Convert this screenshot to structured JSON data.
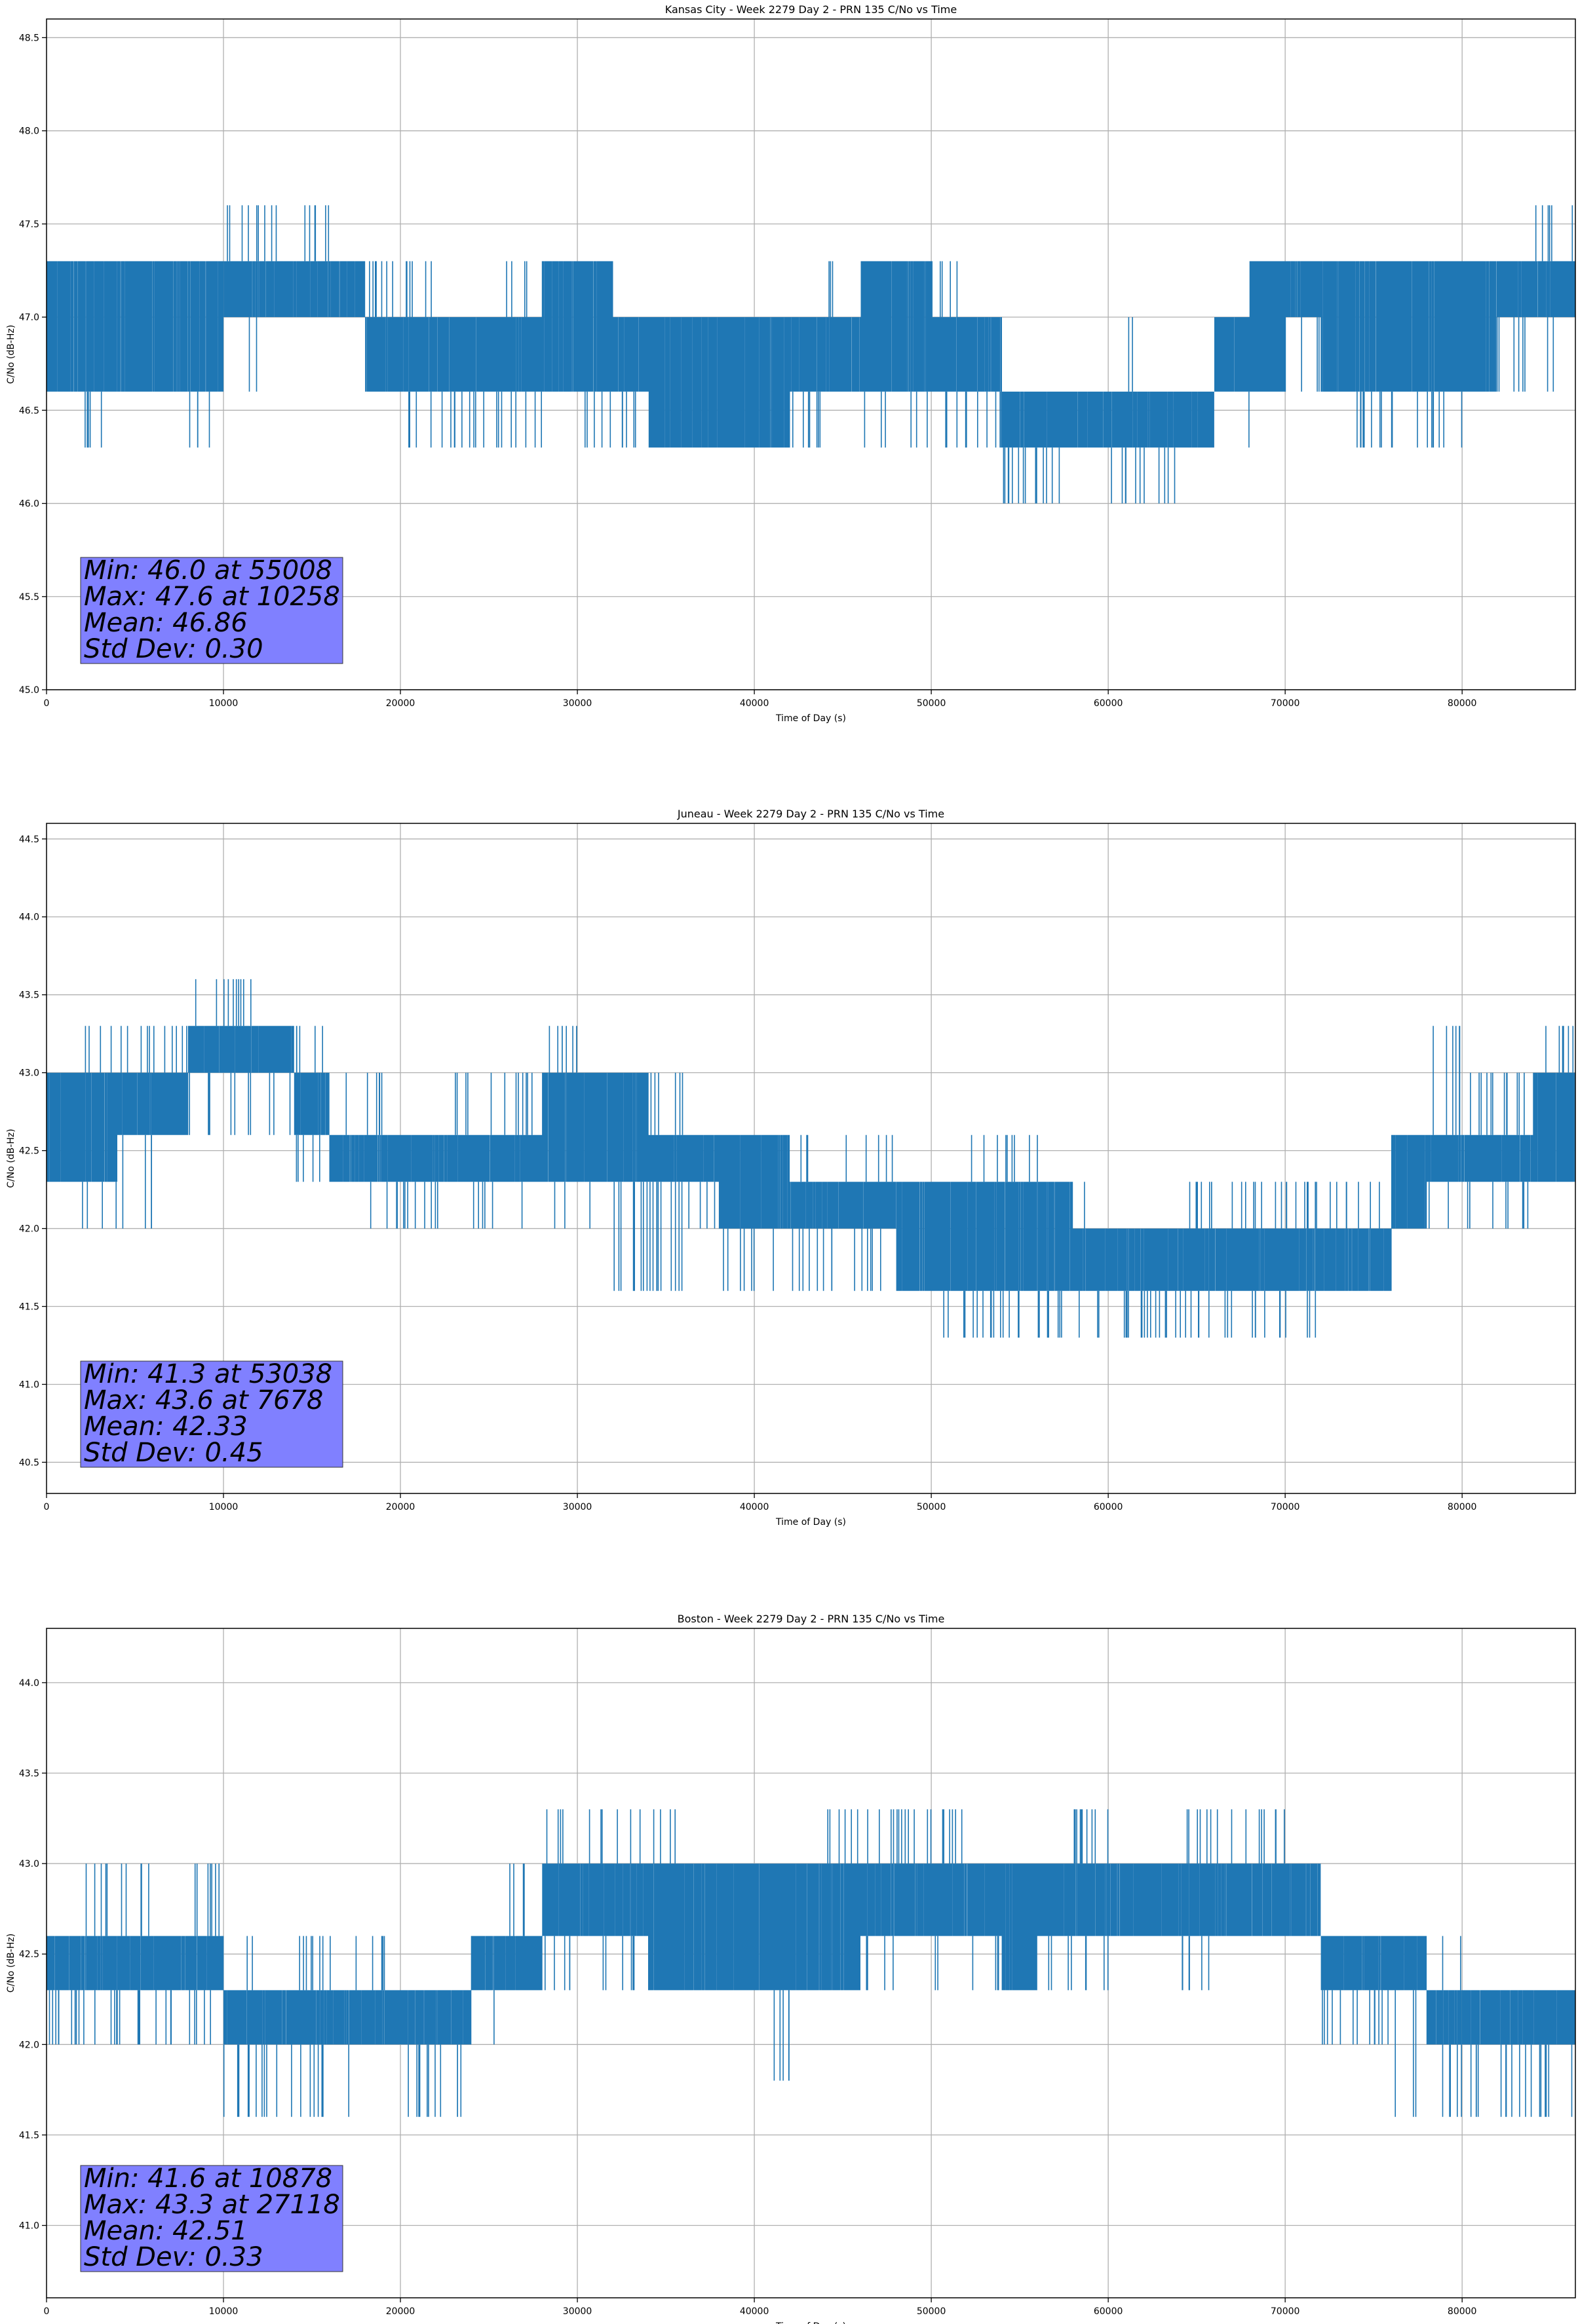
{
  "figure": {
    "background": "#ffffff"
  },
  "style": {
    "line_color": "#1f77b4",
    "grid_color": "#b0b0b0",
    "stats_box_color": "#8080ff"
  },
  "chart_data": [
    {
      "type": "line",
      "title": "Kansas City - Week 2279 Day 2 - PRN 135 C/No vs Time",
      "xlabel": "Time of Day (s)",
      "ylabel": "C/No (dB-Hz)",
      "xlim": [
        0,
        86400
      ],
      "ylim": [
        45.0,
        48.6
      ],
      "xticks": [
        0,
        10000,
        20000,
        30000,
        40000,
        50000,
        60000,
        70000,
        80000
      ],
      "yticks": [
        45.0,
        45.5,
        46.0,
        46.5,
        47.0,
        47.5,
        48.0,
        48.5
      ],
      "grid": true,
      "stats": [
        "Min: 46.0 at 55008",
        "Max: 47.6 at 10258",
        "Mean: 46.86",
        "Std Dev: 0.30"
      ],
      "series": [
        {
          "x": [
            0,
            2000,
            4000,
            6000,
            8000,
            10000,
            12000,
            14000,
            16000,
            18000,
            20000,
            22000,
            24000,
            26000,
            28000,
            30000,
            32000,
            34000,
            36000,
            38000,
            40000,
            42000,
            44000,
            46000,
            48000,
            50000,
            52000,
            54000,
            56000,
            58000,
            60000,
            62000,
            64000,
            66000,
            68000,
            70000,
            72000,
            74000,
            76000,
            78000,
            80000,
            82000,
            84000,
            86400
          ],
          "band_low": [
            46.6,
            46.6,
            46.6,
            46.6,
            46.6,
            47.0,
            47.0,
            47.0,
            47.0,
            46.6,
            46.6,
            46.6,
            46.6,
            46.6,
            46.6,
            46.6,
            46.6,
            46.3,
            46.3,
            46.3,
            46.3,
            46.6,
            46.6,
            46.6,
            46.6,
            46.6,
            46.6,
            46.3,
            46.3,
            46.3,
            46.3,
            46.3,
            46.3,
            46.6,
            46.6,
            47.0,
            46.6,
            46.6,
            46.6,
            46.6,
            46.6,
            47.0,
            47.0,
            47.0
          ],
          "band_high": [
            47.3,
            47.3,
            47.3,
            47.3,
            47.3,
            47.3,
            47.3,
            47.3,
            47.3,
            47.0,
            47.0,
            47.0,
            47.0,
            47.0,
            47.3,
            47.3,
            47.0,
            47.0,
            47.0,
            47.0,
            47.0,
            47.0,
            47.0,
            47.3,
            47.3,
            47.0,
            47.0,
            46.6,
            46.6,
            46.6,
            46.6,
            46.6,
            46.6,
            47.0,
            47.3,
            47.3,
            47.3,
            47.3,
            47.3,
            47.3,
            47.3,
            47.3,
            47.3,
            47.3
          ],
          "spike_high": [
            47.3,
            47.3,
            47.3,
            47.3,
            47.3,
            47.6,
            47.6,
            47.6,
            47.3,
            47.3,
            47.3,
            47.0,
            47.0,
            47.3,
            47.3,
            47.3,
            47.0,
            47.0,
            47.0,
            47.0,
            47.0,
            47.0,
            47.3,
            47.3,
            47.3,
            47.3,
            47.0,
            46.6,
            46.6,
            46.6,
            47.0,
            46.6,
            46.6,
            47.0,
            47.3,
            47.3,
            47.3,
            47.3,
            47.3,
            47.3,
            47.3,
            47.3,
            47.6,
            47.3
          ],
          "spike_low": [
            46.6,
            46.3,
            46.6,
            46.6,
            46.3,
            46.6,
            47.0,
            47.0,
            47.0,
            46.6,
            46.3,
            46.3,
            46.3,
            46.3,
            46.6,
            46.3,
            46.3,
            46.3,
            46.3,
            46.3,
            46.3,
            46.3,
            46.6,
            46.3,
            46.3,
            46.3,
            46.3,
            46.0,
            46.0,
            46.3,
            46.0,
            46.0,
            46.3,
            46.3,
            46.6,
            46.6,
            46.6,
            46.3,
            46.3,
            46.3,
            46.6,
            46.6,
            46.6,
            47.0
          ]
        }
      ]
    },
    {
      "type": "line",
      "title": "Juneau - Week 2279 Day 2 - PRN 135 C/No vs Time",
      "xlabel": "Time of Day (s)",
      "ylabel": "C/No (dB-Hz)",
      "xlim": [
        0,
        86400
      ],
      "ylim": [
        40.3,
        44.6
      ],
      "xticks": [
        0,
        10000,
        20000,
        30000,
        40000,
        50000,
        60000,
        70000,
        80000
      ],
      "yticks": [
        40.5,
        41.0,
        41.5,
        42.0,
        42.5,
        43.0,
        43.5,
        44.0,
        44.5
      ],
      "grid": true,
      "stats": [
        "Min: 41.3 at 53038",
        "Max: 43.6 at 7678",
        "Mean: 42.33",
        "Std Dev: 0.45"
      ],
      "series": [
        {
          "x": [
            0,
            2000,
            4000,
            6000,
            8000,
            10000,
            12000,
            14000,
            16000,
            18000,
            20000,
            22000,
            24000,
            26000,
            28000,
            30000,
            32000,
            34000,
            36000,
            38000,
            40000,
            42000,
            44000,
            46000,
            48000,
            50000,
            52000,
            54000,
            56000,
            58000,
            60000,
            62000,
            64000,
            66000,
            68000,
            70000,
            72000,
            74000,
            76000,
            78000,
            80000,
            82000,
            84000,
            86400
          ],
          "band_low": [
            42.3,
            42.3,
            42.6,
            42.6,
            43.0,
            43.0,
            43.0,
            42.6,
            42.3,
            42.3,
            42.3,
            42.3,
            42.3,
            42.3,
            42.3,
            42.3,
            42.3,
            42.3,
            42.3,
            42.0,
            42.0,
            42.0,
            42.0,
            42.0,
            41.6,
            41.6,
            41.6,
            41.6,
            41.6,
            41.6,
            41.6,
            41.6,
            41.6,
            41.6,
            41.6,
            41.6,
            41.6,
            41.6,
            42.0,
            42.3,
            42.3,
            42.3,
            42.3,
            42.3
          ],
          "band_high": [
            43.0,
            43.0,
            43.0,
            43.0,
            43.3,
            43.3,
            43.3,
            43.0,
            42.6,
            42.6,
            42.6,
            42.6,
            42.6,
            42.6,
            43.0,
            43.0,
            43.0,
            42.6,
            42.6,
            42.6,
            42.6,
            42.3,
            42.3,
            42.3,
            42.3,
            42.3,
            42.3,
            42.3,
            42.3,
            42.0,
            42.0,
            42.0,
            42.0,
            42.0,
            42.0,
            42.0,
            42.0,
            42.0,
            42.6,
            42.6,
            42.6,
            42.6,
            43.0,
            43.0
          ],
          "spike_high": [
            43.0,
            43.3,
            43.3,
            43.3,
            43.6,
            43.6,
            43.3,
            43.3,
            43.0,
            43.0,
            42.6,
            43.0,
            43.0,
            43.0,
            43.3,
            43.0,
            43.0,
            43.0,
            42.6,
            42.6,
            42.6,
            42.6,
            42.6,
            42.6,
            42.3,
            42.3,
            42.6,
            42.6,
            42.3,
            42.3,
            42.0,
            42.0,
            42.3,
            42.3,
            42.3,
            42.3,
            42.3,
            42.3,
            42.6,
            43.3,
            43.0,
            43.0,
            43.3,
            43.3
          ],
          "spike_low": [
            42.3,
            42.0,
            42.0,
            42.6,
            42.6,
            42.6,
            42.6,
            42.3,
            42.3,
            42.0,
            42.0,
            42.0,
            42.0,
            42.0,
            42.0,
            42.0,
            41.6,
            41.6,
            42.0,
            41.6,
            41.6,
            41.6,
            41.6,
            41.6,
            41.6,
            41.3,
            41.3,
            41.3,
            41.3,
            41.3,
            41.3,
            41.3,
            41.3,
            41.3,
            41.3,
            41.3,
            41.6,
            41.6,
            42.0,
            42.0,
            42.0,
            42.0,
            42.3,
            42.3
          ]
        }
      ]
    },
    {
      "type": "line",
      "title": "Boston - Week 2279 Day 2 - PRN 135 C/No vs Time",
      "xlabel": "Time of Day (s)",
      "ylabel": "C/No (dB-Hz)",
      "xlim": [
        0,
        86400
      ],
      "ylim": [
        40.6,
        44.3
      ],
      "xticks": [
        0,
        10000,
        20000,
        30000,
        40000,
        50000,
        60000,
        70000,
        80000
      ],
      "yticks": [
        41.0,
        41.5,
        42.0,
        42.5,
        43.0,
        43.5,
        44.0
      ],
      "grid": true,
      "stats": [
        "Min: 41.6 at 10878",
        "Max: 43.3 at 27118",
        "Mean: 42.51",
        "Std Dev: 0.33"
      ],
      "series": [
        {
          "x": [
            0,
            2000,
            4000,
            6000,
            8000,
            10000,
            12000,
            14000,
            16000,
            18000,
            20000,
            22000,
            24000,
            26000,
            28000,
            30000,
            32000,
            34000,
            36000,
            38000,
            40000,
            42000,
            44000,
            46000,
            48000,
            50000,
            52000,
            54000,
            56000,
            58000,
            60000,
            62000,
            64000,
            66000,
            68000,
            70000,
            72000,
            74000,
            76000,
            78000,
            80000,
            82000,
            84000,
            86400
          ],
          "band_low": [
            42.3,
            42.3,
            42.3,
            42.3,
            42.3,
            42.0,
            42.0,
            42.0,
            42.0,
            42.0,
            42.0,
            42.0,
            42.3,
            42.3,
            42.6,
            42.6,
            42.6,
            42.3,
            42.3,
            42.3,
            42.3,
            42.3,
            42.3,
            42.6,
            42.6,
            42.6,
            42.6,
            42.3,
            42.6,
            42.6,
            42.6,
            42.6,
            42.6,
            42.6,
            42.6,
            42.6,
            42.3,
            42.3,
            42.3,
            42.0,
            42.0,
            42.0,
            42.0,
            42.0
          ],
          "band_high": [
            42.6,
            42.6,
            42.6,
            42.6,
            42.6,
            42.3,
            42.3,
            42.3,
            42.3,
            42.3,
            42.3,
            42.3,
            42.6,
            42.6,
            43.0,
            43.0,
            43.0,
            43.0,
            43.0,
            43.0,
            43.0,
            43.0,
            43.0,
            43.0,
            43.0,
            43.0,
            43.0,
            43.0,
            43.0,
            43.0,
            43.0,
            43.0,
            43.0,
            43.0,
            43.0,
            43.0,
            42.6,
            42.6,
            42.6,
            42.3,
            42.3,
            42.3,
            42.3,
            42.3
          ],
          "spike_high": [
            42.6,
            43.0,
            43.0,
            42.6,
            43.0,
            42.6,
            42.3,
            42.6,
            42.6,
            42.6,
            42.3,
            42.3,
            42.6,
            43.0,
            43.3,
            43.3,
            43.3,
            43.3,
            43.0,
            43.0,
            43.0,
            43.0,
            43.3,
            43.3,
            43.3,
            43.3,
            43.0,
            43.0,
            43.0,
            43.3,
            43.0,
            43.0,
            43.3,
            43.3,
            43.3,
            43.0,
            42.6,
            42.6,
            42.6,
            42.6,
            42.3,
            42.3,
            42.3,
            42.3
          ],
          "spike_low": [
            42.0,
            42.0,
            42.0,
            42.0,
            42.0,
            41.6,
            41.6,
            41.6,
            41.6,
            42.0,
            41.6,
            41.6,
            42.0,
            42.3,
            42.3,
            42.3,
            42.3,
            42.3,
            42.3,
            42.3,
            41.8,
            42.3,
            42.3,
            42.3,
            42.6,
            42.3,
            42.3,
            42.3,
            42.3,
            42.3,
            42.6,
            42.6,
            42.3,
            42.6,
            42.6,
            42.6,
            42.0,
            42.0,
            41.6,
            41.6,
            41.6,
            41.6,
            41.6,
            41.6
          ]
        }
      ]
    }
  ]
}
